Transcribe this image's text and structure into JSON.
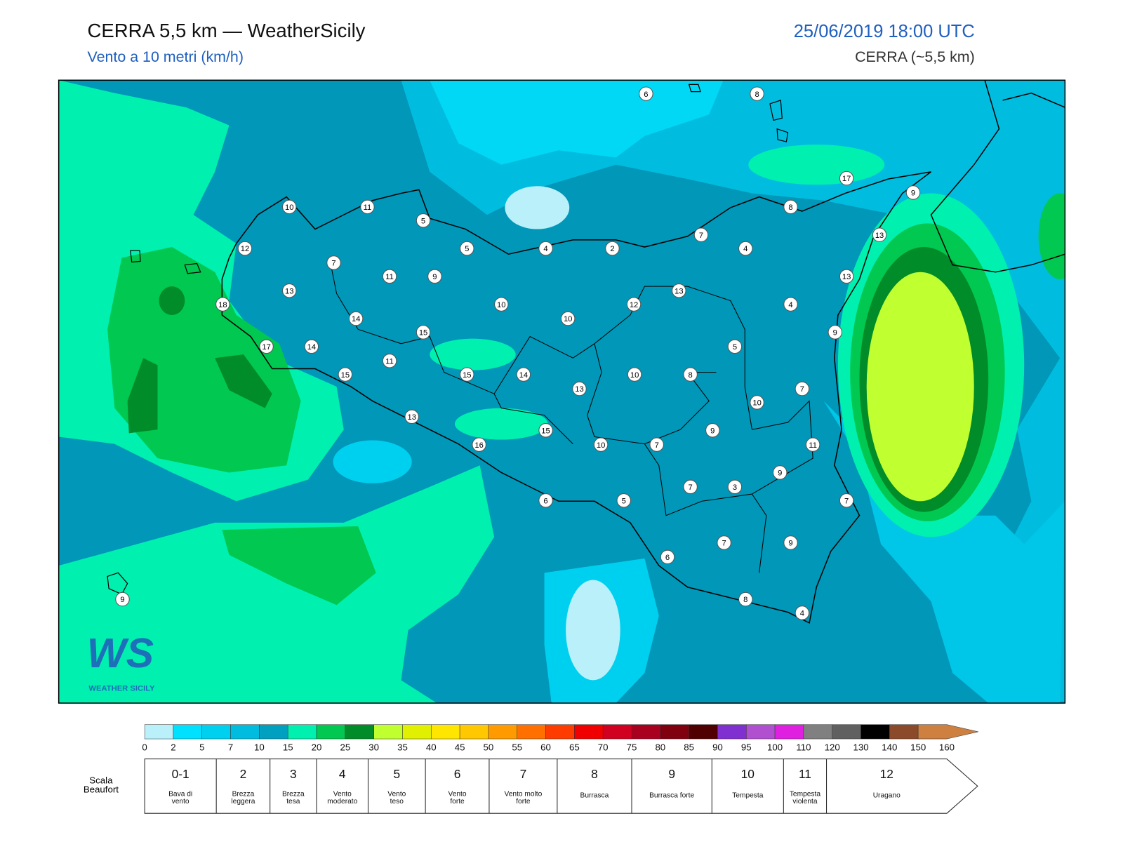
{
  "header": {
    "title": "CERRA 5,5 km — WeatherSicily",
    "subtitle": "Vento a 10 metri (km/h)",
    "datetime": "25/06/2019 18:00 UTC",
    "model": "CERRA (~5,5 km)"
  },
  "stations": {
    "values": [
      6,
      8,
      17,
      9,
      10,
      11,
      5,
      8,
      13,
      7,
      12,
      5,
      4,
      2,
      4,
      7,
      11,
      9,
      13,
      13,
      13,
      18,
      10,
      12,
      4,
      14,
      10,
      15,
      9,
      17,
      14,
      5,
      11,
      15,
      15,
      14,
      10,
      8,
      13,
      7,
      10,
      13,
      15,
      9,
      16,
      10,
      7,
      11,
      9,
      7,
      3,
      6,
      5,
      7,
      7,
      9,
      6,
      9,
      8,
      4
    ]
  },
  "logo": {
    "text": "WS",
    "subtitle": "WEATHER SICILY"
  },
  "colorbar": {
    "ticks": [
      0,
      2,
      5,
      7,
      10,
      15,
      20,
      25,
      30,
      35,
      40,
      45,
      50,
      55,
      60,
      65,
      70,
      75,
      80,
      85,
      90,
      95,
      100,
      110,
      120,
      130,
      140,
      150,
      160
    ],
    "colors": [
      "#b9f0fa",
      "#00e1ff",
      "#00d0f0",
      "#00bde0",
      "#00a0c0",
      "#00f0b0",
      "#00c850",
      "#008c28",
      "#c0ff30",
      "#e0f000",
      "#ffe600",
      "#ffc800",
      "#ff9a00",
      "#ff7000",
      "#ff3c00",
      "#f00000",
      "#d20020",
      "#aa0020",
      "#800010",
      "#500000",
      "#8030d0",
      "#b050d0",
      "#e020e0",
      "#808080",
      "#606060",
      "#000000",
      "#8b4a2a",
      "#cd8040"
    ]
  },
  "beaufort": {
    "title": "Scala Beaufort",
    "levels": [
      {
        "force": "0-1",
        "name": "Bava di vento"
      },
      {
        "force": "2",
        "name": "Brezza leggera"
      },
      {
        "force": "3",
        "name": "Brezza tesa"
      },
      {
        "force": "4",
        "name": "Vento moderato"
      },
      {
        "force": "5",
        "name": "Vento teso"
      },
      {
        "force": "6",
        "name": "Vento forte"
      },
      {
        "force": "7",
        "name": "Vento molto forte"
      },
      {
        "force": "8",
        "name": "Burrasca"
      },
      {
        "force": "9",
        "name": "Burrasca forte"
      },
      {
        "force": "10",
        "name": "Tempesta"
      },
      {
        "force": "11",
        "name": "Tempesta violenta"
      },
      {
        "force": "12",
        "name": "Uragano"
      }
    ]
  }
}
